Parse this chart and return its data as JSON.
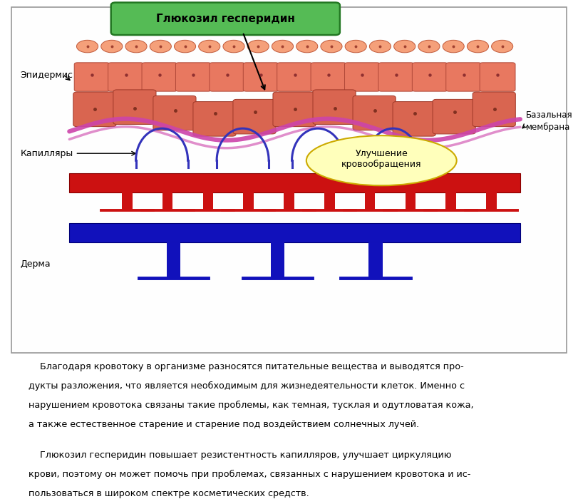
{
  "bg_color": "#ffffff",
  "cell_fill_top": "#f5a880",
  "cell_fill_mid": "#e87860",
  "cell_fill_bot": "#d96550",
  "membrane_color": "#cc44aa",
  "capillary_color": "#3333bb",
  "artery_color": "#cc1111",
  "vein_color": "#1111bb",
  "glucosyl_box_fill": "#55bb55",
  "glucosyl_box_stroke": "#227722",
  "glucosyl_text": "Глюкозил гесперидин",
  "epidermis_label": "Эпидермис",
  "basal_label": "Базальная\nмембрана",
  "capillary_label": "Капилляры",
  "derma_label": "Дерма",
  "improvement_label": "Улучшение\nкровообращения",
  "para1_lines": [
    "    Благодаря кровотоку в организме разносятся питательные вещества и выводятся про-",
    "дукты разложения, что является необходимым для жизнедеятельности клеток. Именно с",
    "нарушением кровотока связаны такие проблемы, как темная, тусклая и одутловатая кожа,",
    "а также естественное старение и старение под воздействием солнечных лучей."
  ],
  "para2_lines": [
    "    Глюкозил гесперидин повышает резистентность капилляров, улучшает циркуляцию",
    "крови, поэтому он может помочь при проблемах, связанных с нарушением кровотока и ис-",
    "пользоваться в широком спектре косметических средств."
  ]
}
